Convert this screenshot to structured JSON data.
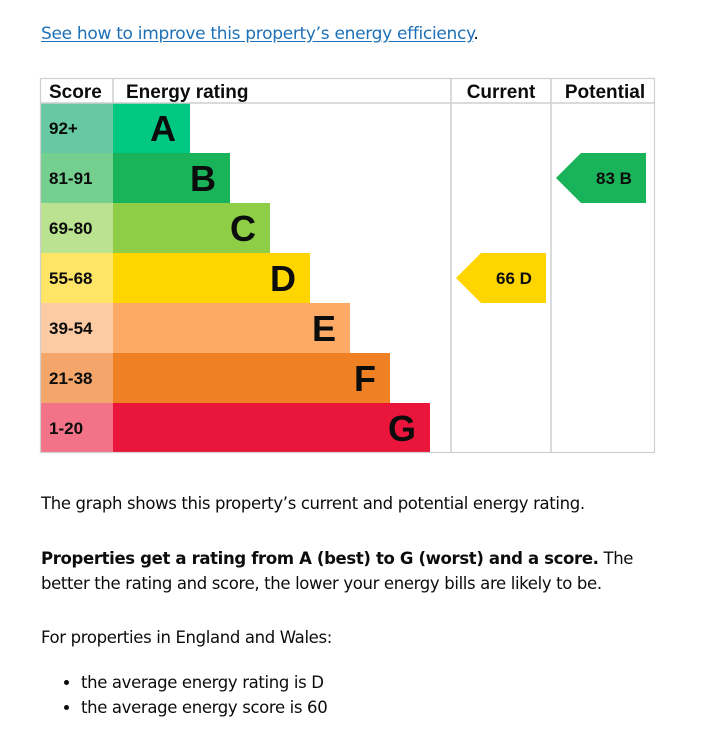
{
  "link": {
    "text": "See how to improve this property’s energy efficiency",
    "trailing": "."
  },
  "chart_data": {
    "type": "table",
    "title": "Energy rating",
    "headers": {
      "score": "Score",
      "rating": "Energy rating",
      "current": "Current",
      "potential": "Potential"
    },
    "bands": [
      {
        "band": "A",
        "range": "92+",
        "color": "#00c781",
        "score_color": "#66c9a4"
      },
      {
        "band": "B",
        "range": "81-91",
        "color": "#19b459",
        "score_color": "#75d08f"
      },
      {
        "band": "C",
        "range": "69-80",
        "color": "#8dce46",
        "score_color": "#bbe290"
      },
      {
        "band": "D",
        "range": "55-68",
        "color": "#ffd500",
        "score_color": "#ffe566"
      },
      {
        "band": "E",
        "range": "39-54",
        "color": "#fcaa65",
        "score_color": "#fdcba3"
      },
      {
        "band": "F",
        "range": "21-38",
        "color": "#ef8023",
        "score_color": "#f4a66a"
      },
      {
        "band": "G",
        "range": "1-20",
        "color": "#e9153b",
        "score_color": "#f27388"
      }
    ],
    "current": {
      "score": 66,
      "band": "D",
      "label": "66  D",
      "color": "#ffd500"
    },
    "potential": {
      "score": 83,
      "band": "B",
      "label": "83  B",
      "color": "#19b459"
    }
  },
  "text": {
    "graph_description": "The graph shows this property’s current and potential energy rating.",
    "rating_bold": "Properties get a rating from A (best) to G (worst) and a score.",
    "rating_rest": " The better the rating and score, the lower your energy bills are likely to be.",
    "region_intro": "For properties in England and Wales:",
    "averages": [
      "the average energy rating is D",
      "the average energy score is 60"
    ]
  }
}
